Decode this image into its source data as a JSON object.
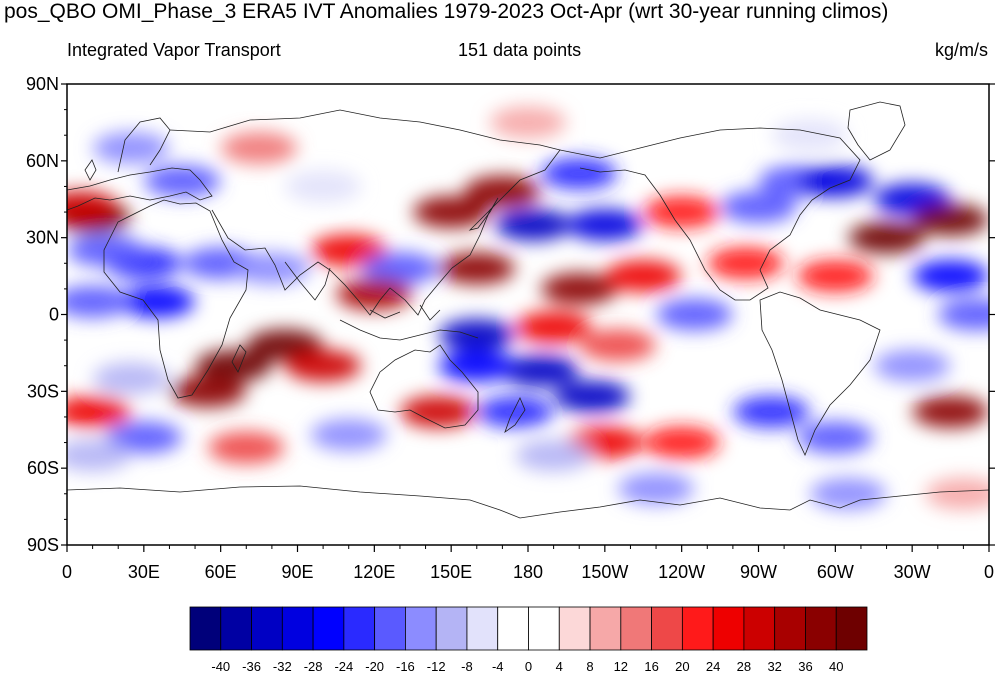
{
  "title": "pos_QBO OMI_Phase_3 ERA5 IVT Anomalies 1979-2023 Oct-Apr (wrt 30-year running climos)",
  "subtitle_left": "Integrated Vapor Transport",
  "subtitle_center": "151 data points",
  "subtitle_right": "kg/m/s",
  "lat_labels": [
    "90N",
    "60N",
    "30N",
    "0",
    "30S",
    "60S",
    "90S"
  ],
  "lon_labels": [
    "0",
    "30E",
    "60E",
    "90E",
    "120E",
    "150E",
    "180",
    "150W",
    "120W",
    "90W",
    "60W",
    "30W",
    "0"
  ],
  "colorbar": {
    "levels": [
      "-40",
      "-36",
      "-32",
      "-28",
      "-24",
      "-20",
      "-16",
      "-12",
      "-8",
      "-4",
      "0",
      "4",
      "8",
      "12",
      "16",
      "20",
      "24",
      "28",
      "32",
      "36",
      "40"
    ],
    "colors": [
      "#00007a",
      "#0000a3",
      "#0000c4",
      "#0000e0",
      "#0000ff",
      "#2a2aff",
      "#5a5aff",
      "#8c8cff",
      "#b4b4f5",
      "#e2e2fb",
      "#ffffff",
      "#ffffff",
      "#fcd8d8",
      "#f6a8a8",
      "#f07878",
      "#ee4848",
      "#ff1a1a",
      "#ee0000",
      "#cc0000",
      "#a80000",
      "#8a0000",
      "#6e0000"
    ]
  },
  "anomaly_patches": [
    {
      "lon": 10,
      "lat": 38,
      "v": 40
    },
    {
      "lon": 5,
      "lat": 42,
      "v": 28
    },
    {
      "lon": 30,
      "lat": 20,
      "v": -24
    },
    {
      "lon": 15,
      "lat": 25,
      "v": -20
    },
    {
      "lon": 35,
      "lat": 5,
      "v": -28
    },
    {
      "lon": 10,
      "lat": 5,
      "v": -20
    },
    {
      "lon": 45,
      "lat": 52,
      "v": -20
    },
    {
      "lon": 25,
      "lat": 65,
      "v": -16
    },
    {
      "lon": 75,
      "lat": 65,
      "v": 12
    },
    {
      "lon": 60,
      "lat": 20,
      "v": -20
    },
    {
      "lon": 80,
      "lat": 18,
      "v": -16
    },
    {
      "lon": 65,
      "lat": -20,
      "v": 40
    },
    {
      "lon": 85,
      "lat": -12,
      "v": 40
    },
    {
      "lon": 55,
      "lat": -30,
      "v": 36
    },
    {
      "lon": 100,
      "lat": -20,
      "v": 28
    },
    {
      "lon": 25,
      "lat": -25,
      "v": -12
    },
    {
      "lon": 10,
      "lat": -38,
      "v": 24
    },
    {
      "lon": 30,
      "lat": -48,
      "v": -20
    },
    {
      "lon": 70,
      "lat": -52,
      "v": 16
    },
    {
      "lon": 110,
      "lat": -47,
      "v": -16
    },
    {
      "lon": 110,
      "lat": 25,
      "v": 24
    },
    {
      "lon": 130,
      "lat": 18,
      "v": -20
    },
    {
      "lon": 120,
      "lat": 8,
      "v": 32
    },
    {
      "lon": 150,
      "lat": 40,
      "v": 36
    },
    {
      "lon": 170,
      "lat": 48,
      "v": 36
    },
    {
      "lon": 182,
      "lat": 35,
      "v": -36
    },
    {
      "lon": 210,
      "lat": 35,
      "v": -32
    },
    {
      "lon": 200,
      "lat": 55,
      "v": -24
    },
    {
      "lon": 160,
      "lat": 18,
      "v": 36
    },
    {
      "lon": 200,
      "lat": 10,
      "v": 36
    },
    {
      "lon": 225,
      "lat": 15,
      "v": 24
    },
    {
      "lon": 160,
      "lat": -8,
      "v": -36
    },
    {
      "lon": 185,
      "lat": -22,
      "v": -36
    },
    {
      "lon": 205,
      "lat": -32,
      "v": -36
    },
    {
      "lon": 175,
      "lat": -38,
      "v": -24
    },
    {
      "lon": 160,
      "lat": -20,
      "v": -28
    },
    {
      "lon": 190,
      "lat": -5,
      "v": 24
    },
    {
      "lon": 215,
      "lat": -12,
      "v": 16
    },
    {
      "lon": 145,
      "lat": -38,
      "v": 28
    },
    {
      "lon": 210,
      "lat": -50,
      "v": 24
    },
    {
      "lon": 240,
      "lat": -50,
      "v": 20
    },
    {
      "lon": 190,
      "lat": -55,
      "v": -12
    },
    {
      "lon": 230,
      "lat": -68,
      "v": -16
    },
    {
      "lon": 265,
      "lat": 20,
      "v": 20
    },
    {
      "lon": 240,
      "lat": 40,
      "v": 20
    },
    {
      "lon": 245,
      "lat": 0,
      "v": -20
    },
    {
      "lon": 270,
      "lat": 42,
      "v": -20
    },
    {
      "lon": 285,
      "lat": 52,
      "v": -20
    },
    {
      "lon": 300,
      "lat": 52,
      "v": -32
    },
    {
      "lon": 330,
      "lat": 45,
      "v": -32
    },
    {
      "lon": 320,
      "lat": 30,
      "v": 40
    },
    {
      "lon": 345,
      "lat": 37,
      "v": 40
    },
    {
      "lon": 345,
      "lat": 15,
      "v": -28
    },
    {
      "lon": 355,
      "lat": 0,
      "v": -20
    },
    {
      "lon": 300,
      "lat": 15,
      "v": 20
    },
    {
      "lon": 275,
      "lat": -38,
      "v": -24
    },
    {
      "lon": 300,
      "lat": -48,
      "v": -20
    },
    {
      "lon": 305,
      "lat": -70,
      "v": -16
    },
    {
      "lon": 330,
      "lat": -20,
      "v": -16
    },
    {
      "lon": 345,
      "lat": -38,
      "v": 36
    },
    {
      "lon": 10,
      "lat": -55,
      "v": -12
    },
    {
      "lon": 350,
      "lat": -70,
      "v": 8
    },
    {
      "lon": 180,
      "lat": 75,
      "v": 8
    },
    {
      "lon": 100,
      "lat": 50,
      "v": -8
    },
    {
      "lon": 290,
      "lat": 70,
      "v": -8
    }
  ]
}
